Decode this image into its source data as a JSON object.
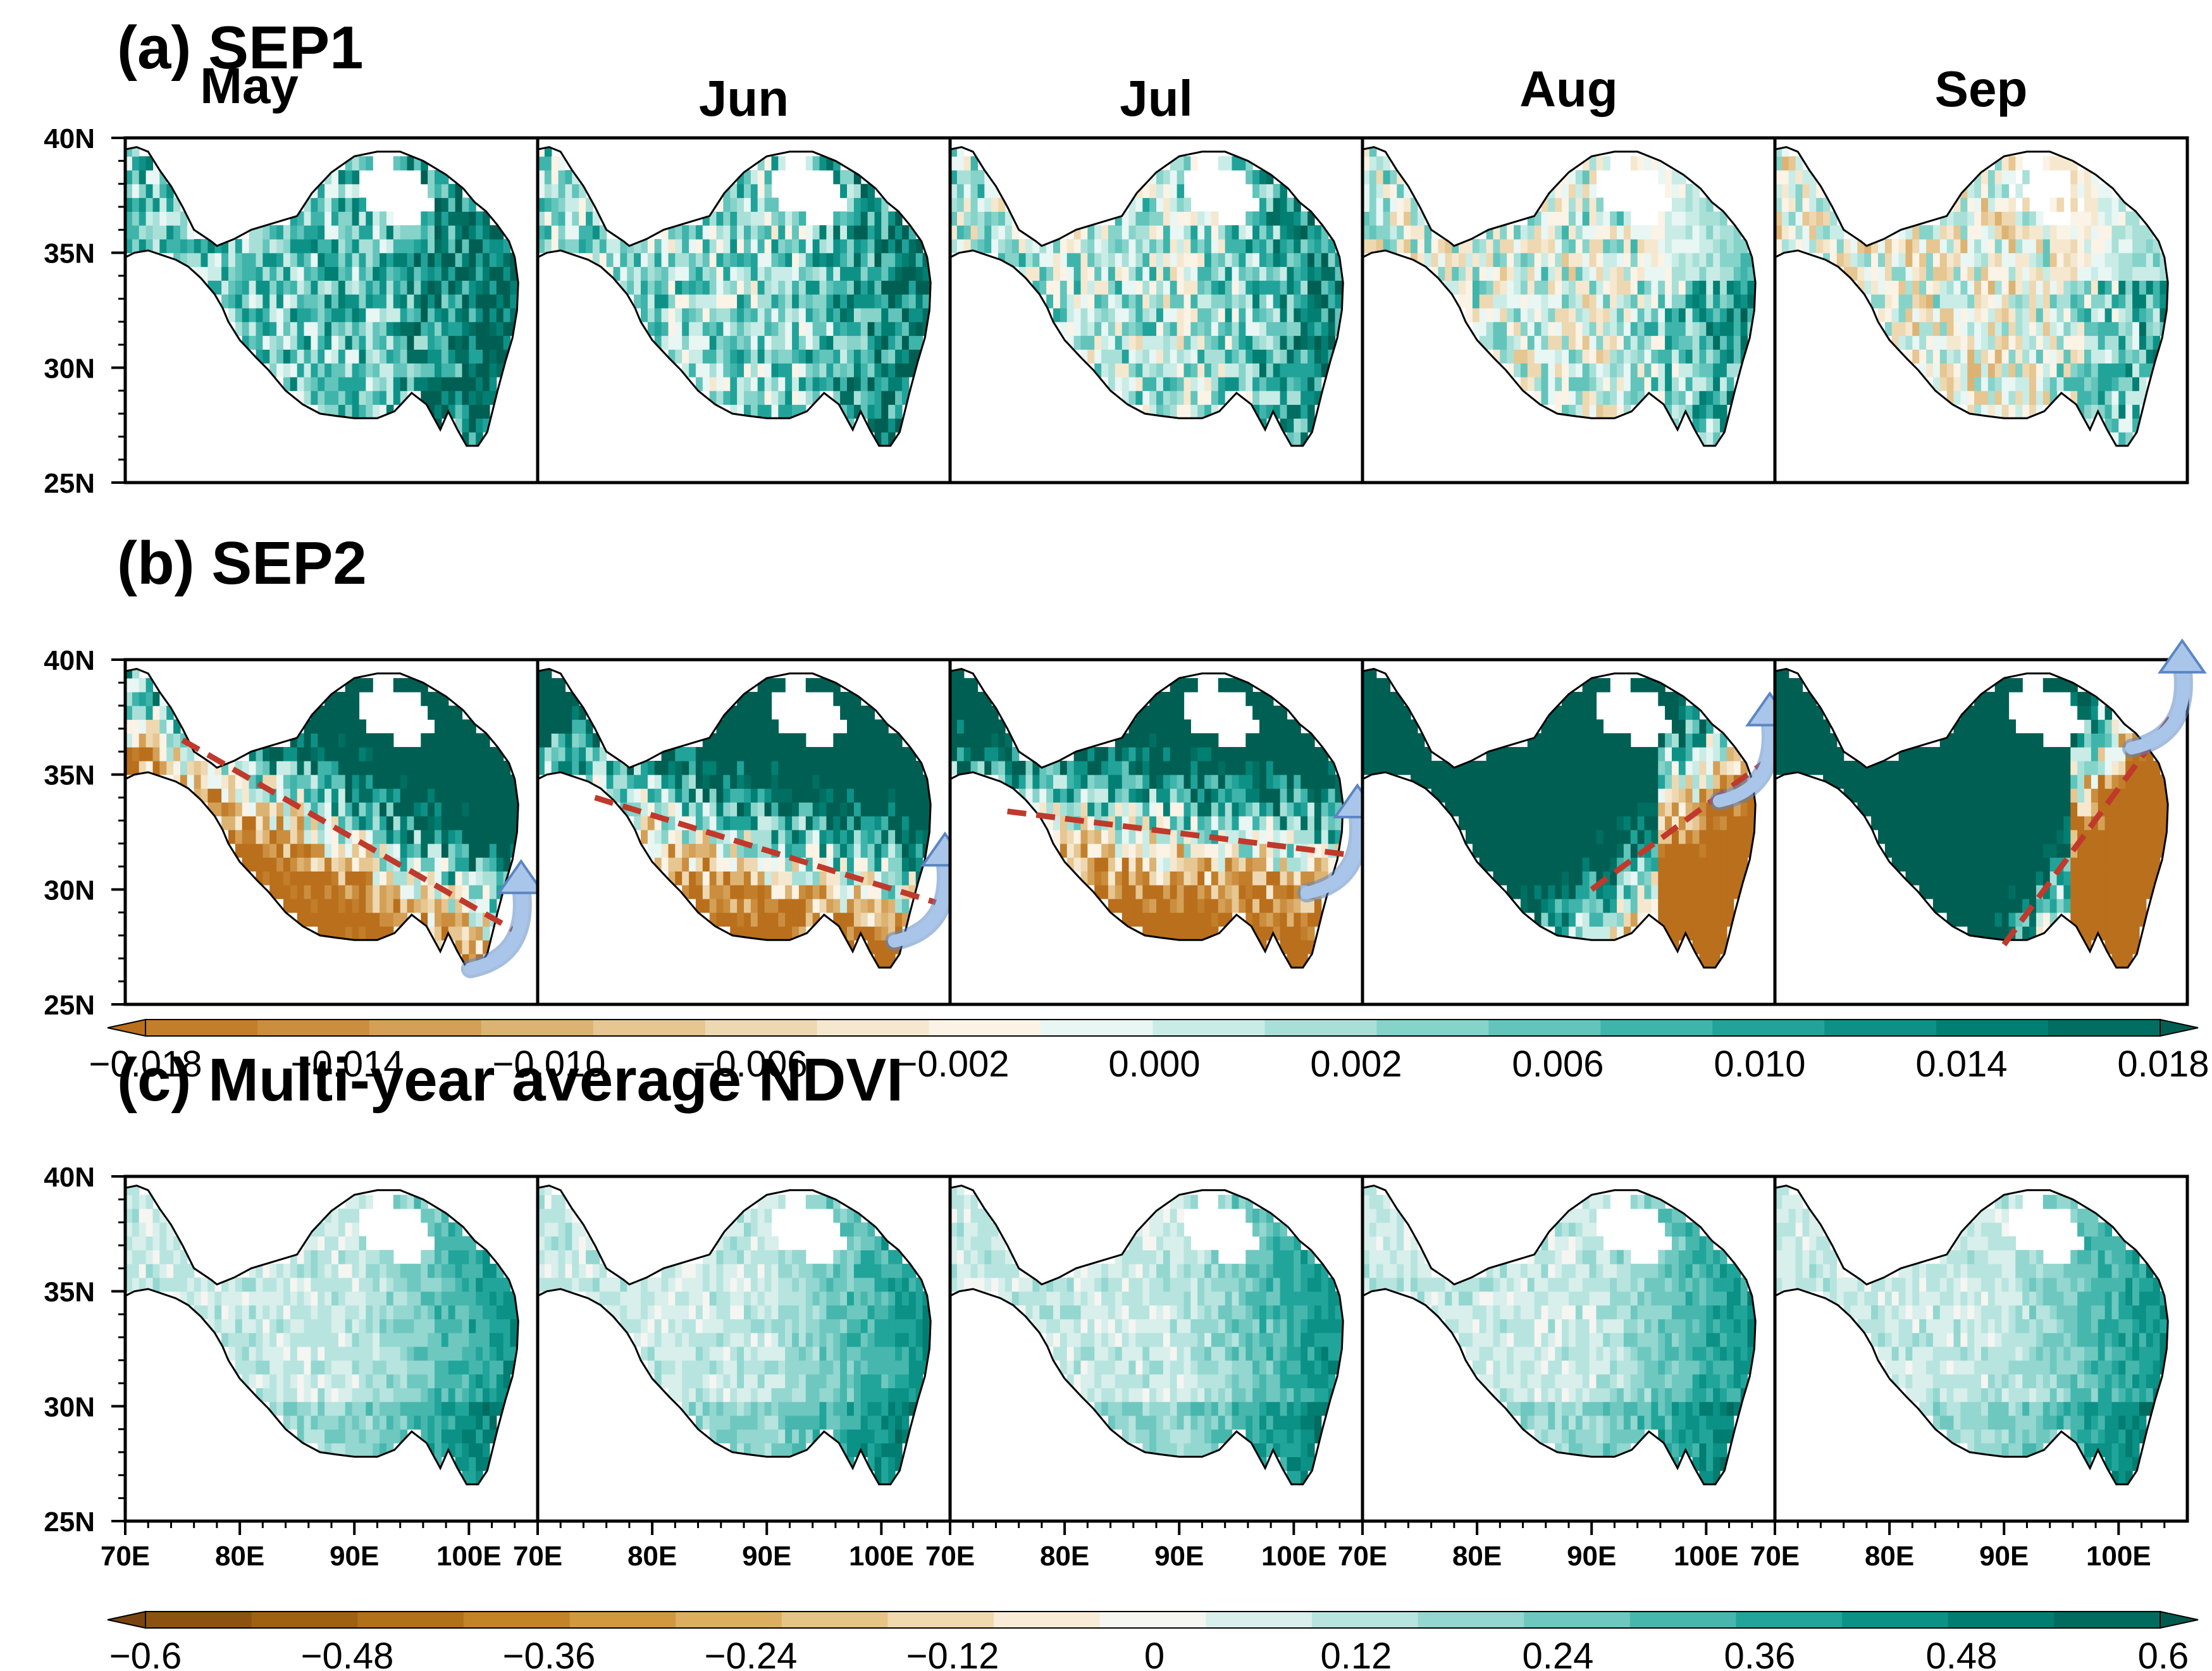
{
  "rows": [
    {
      "title": "(a) SEP1",
      "type": "sep1"
    },
    {
      "title": "(b) SEP2",
      "type": "sep2"
    },
    {
      "title": "(c) Multi-year average NDVI",
      "type": "ndvi"
    }
  ],
  "months": [
    "May",
    "Jun",
    "Jul",
    "Aug",
    "Sep"
  ],
  "lat_labels": [
    "40N",
    "35N",
    "30N",
    "25N"
  ],
  "lon_labels": [
    "70E",
    "80E",
    "90E",
    "100E"
  ],
  "colorbar_sep": {
    "ticks": [
      "−0.018",
      "−0.014",
      "−0.010",
      "−0.006",
      "−0.002",
      "0.000",
      "0.002",
      "0.006",
      "0.010",
      "0.014",
      "0.018"
    ],
    "colors": [
      "#b96f1c",
      "#c27e2a",
      "#cb8e3e",
      "#d4a057",
      "#ddb373",
      "#e6c691",
      "#eed8b1",
      "#f5e8cf",
      "#faf3e6",
      "#e8f6f4",
      "#c9ece6",
      "#a8e0d8",
      "#86d3ca",
      "#62c4bb",
      "#3fb4ab",
      "#21a39a",
      "#0d9186",
      "#027f73",
      "#016e62",
      "#005f53"
    ]
  },
  "colorbar_ndvi": {
    "ticks": [
      "−0.6",
      "−0.48",
      "−0.36",
      "−0.24",
      "−0.12",
      "0",
      "0.12",
      "0.24",
      "0.36",
      "0.48",
      "0.6"
    ],
    "colors": [
      "#7a4410",
      "#8c520f",
      "#9e6112",
      "#b07118",
      "#c28426",
      "#d0993f",
      "#dcae60",
      "#e6c486",
      "#f0d9ad",
      "#f8ecd6",
      "#f5f5f2",
      "#d8efec",
      "#b7e4df",
      "#93d7d0",
      "#6ec8c0",
      "#47b7ae",
      "#21a59b",
      "#0b9186",
      "#027d71",
      "#006b5e",
      "#005a4e"
    ]
  },
  "shift_lines": [
    {
      "lon": [
        75,
        104
      ],
      "lat": [
        36.5,
        28.2
      ]
    },
    {
      "lon": [
        75,
        105
      ],
      "lat": [
        34.0,
        29.4
      ]
    },
    {
      "lon": [
        75,
        105
      ],
      "lat": [
        33.4,
        31.5
      ]
    },
    {
      "lon": [
        90,
        105
      ],
      "lat": [
        30.0,
        35.5
      ]
    },
    {
      "lon": [
        90,
        105
      ],
      "lat": [
        27.6,
        37.8
      ]
    }
  ],
  "colors": {
    "line": "#c0392b",
    "arrow_fill": "#a9c6ea",
    "arrow_stroke": "#5b86c2"
  }
}
